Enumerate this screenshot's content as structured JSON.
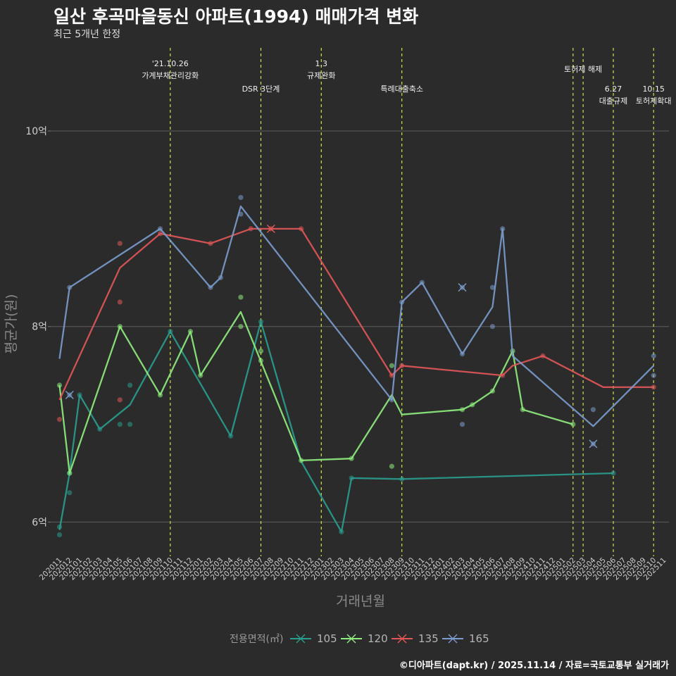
{
  "header": {
    "title": "일산 후곡마을동신 아파트(1994) 매매가격 변화",
    "subtitle": "최근 5개년 한정"
  },
  "caption": "©디아파트(dapt.kr) / 2025.11.14 / 자료=국토교통부 실거래가",
  "chart_data": {
    "type": "line",
    "title": "일산 후곡마을동신 아파트(1994) 매매가격 변화",
    "subtitle": "최근 5개년 한정",
    "xlabel": "거래년월",
    "ylabel": "평균가(원)",
    "ylim": [
      5.65,
      10.85
    ],
    "yticks": [
      {
        "value": 6,
        "label": "6억"
      },
      {
        "value": 8,
        "label": "8억"
      },
      {
        "value": 10,
        "label": "10억"
      }
    ],
    "categories": [
      "202011",
      "202012",
      "202101",
      "202102",
      "202103",
      "202104",
      "202105",
      "202106",
      "202107",
      "202108",
      "202109",
      "202110",
      "202111",
      "202112",
      "202201",
      "202202",
      "202203",
      "202204",
      "202205",
      "202206",
      "202207",
      "202208",
      "202209",
      "202210",
      "202211",
      "202212",
      "202301",
      "202302",
      "202303",
      "202304",
      "202305",
      "202306",
      "202307",
      "202308",
      "202309",
      "202310",
      "202311",
      "202312",
      "202401",
      "202402",
      "202403",
      "202404",
      "202405",
      "202406",
      "202407",
      "202408",
      "202409",
      "202410",
      "202411",
      "202412",
      "202501",
      "202502",
      "202503",
      "202504",
      "202505",
      "202506",
      "202507",
      "202508",
      "202509",
      "202510",
      "202511"
    ],
    "legend_title": "전용면적(㎡)",
    "series": [
      {
        "name": "105",
        "color": "#2a9d8f",
        "line": [
          [
            0,
            5.92
          ],
          [
            1,
            6.5
          ],
          [
            2,
            7.3
          ],
          [
            4,
            6.95
          ],
          [
            7,
            7.2
          ],
          [
            11,
            7.95
          ],
          [
            17,
            6.88
          ],
          [
            20,
            8.05
          ],
          [
            24,
            6.62
          ],
          [
            28,
            5.9
          ],
          [
            29,
            6.45
          ],
          [
            34,
            6.44
          ],
          [
            55,
            6.5
          ]
        ],
        "points": [
          [
            0,
            5.87
          ],
          [
            0,
            5.95
          ],
          [
            1,
            6.3
          ],
          [
            1,
            6.5
          ],
          [
            2,
            7.3
          ],
          [
            4,
            6.95
          ],
          [
            6,
            7.0
          ],
          [
            7,
            7.0
          ],
          [
            7,
            7.4
          ],
          [
            11,
            7.95
          ],
          [
            17,
            6.88
          ],
          [
            20,
            8.05
          ],
          [
            28,
            5.9
          ],
          [
            29,
            6.45
          ],
          [
            34,
            6.44
          ],
          [
            55,
            6.5
          ]
        ],
        "crosses": []
      },
      {
        "name": "120",
        "color": "#90ee7e",
        "line": [
          [
            0,
            7.4
          ],
          [
            1,
            6.5
          ],
          [
            6,
            8.0
          ],
          [
            10,
            7.3
          ],
          [
            13,
            7.95
          ],
          [
            14,
            7.5
          ],
          [
            18,
            8.15
          ],
          [
            24,
            6.63
          ],
          [
            29,
            6.65
          ],
          [
            33,
            7.3
          ],
          [
            34,
            7.1
          ],
          [
            40,
            7.15
          ],
          [
            41,
            7.2
          ],
          [
            43,
            7.34
          ],
          [
            45,
            7.75
          ],
          [
            46,
            7.15
          ],
          [
            51,
            7.0
          ]
        ],
        "points": [
          [
            0,
            7.4
          ],
          [
            1,
            6.5
          ],
          [
            6,
            8.0
          ],
          [
            10,
            7.3
          ],
          [
            13,
            7.95
          ],
          [
            14,
            7.5
          ],
          [
            18,
            8.0
          ],
          [
            18,
            8.3
          ],
          [
            20,
            7.65
          ],
          [
            20,
            7.75
          ],
          [
            24,
            6.63
          ],
          [
            29,
            6.65
          ],
          [
            33,
            6.57
          ],
          [
            33,
            7.6
          ],
          [
            40,
            7.15
          ],
          [
            41,
            7.2
          ],
          [
            43,
            7.34
          ],
          [
            45,
            7.75
          ],
          [
            46,
            7.15
          ],
          [
            51,
            7.0
          ]
        ],
        "crosses": []
      },
      {
        "name": "135",
        "color": "#e15759",
        "line": [
          [
            0,
            7.25
          ],
          [
            6,
            8.6
          ],
          [
            10,
            8.95
          ],
          [
            15,
            8.85
          ],
          [
            19,
            9.0
          ],
          [
            21,
            9.0
          ],
          [
            24,
            9.0
          ],
          [
            33,
            7.5
          ],
          [
            34,
            7.6
          ],
          [
            44,
            7.5
          ],
          [
            45,
            7.6
          ],
          [
            48,
            7.7
          ],
          [
            54,
            7.38
          ],
          [
            59,
            7.38
          ]
        ],
        "points": [
          [
            0,
            7.05
          ],
          [
            6,
            8.25
          ],
          [
            6,
            8.85
          ],
          [
            6,
            7.25
          ],
          [
            10,
            8.95
          ],
          [
            15,
            8.85
          ],
          [
            19,
            9.0
          ],
          [
            24,
            9.0
          ],
          [
            33,
            7.5
          ],
          [
            34,
            7.6
          ],
          [
            44,
            7.5
          ],
          [
            48,
            7.7
          ],
          [
            59,
            7.38
          ]
        ],
        "crosses": [
          [
            21,
            9.0
          ]
        ]
      },
      {
        "name": "165",
        "color": "#7b9ccc",
        "line": [
          [
            0,
            7.67
          ],
          [
            1,
            8.4
          ],
          [
            10,
            9.0
          ],
          [
            15,
            8.4
          ],
          [
            16,
            8.5
          ],
          [
            18,
            9.23
          ],
          [
            33,
            7.25
          ],
          [
            34,
            8.25
          ],
          [
            36,
            8.45
          ],
          [
            40,
            7.72
          ],
          [
            43,
            8.2
          ],
          [
            44,
            9.0
          ],
          [
            45,
            7.7
          ],
          [
            53,
            6.98
          ],
          [
            59,
            7.6
          ]
        ],
        "points": [
          [
            1,
            8.4
          ],
          [
            10,
            9.0
          ],
          [
            15,
            8.4
          ],
          [
            16,
            8.5
          ],
          [
            18,
            9.15
          ],
          [
            18,
            9.32
          ],
          [
            33,
            7.25
          ],
          [
            34,
            8.25
          ],
          [
            36,
            8.45
          ],
          [
            40,
            7.0
          ],
          [
            40,
            7.72
          ],
          [
            43,
            8.0
          ],
          [
            43,
            8.4
          ],
          [
            44,
            9.0
          ],
          [
            53,
            7.15
          ],
          [
            59,
            7.5
          ],
          [
            59,
            7.7
          ]
        ],
        "crosses": [
          [
            1,
            7.3
          ],
          [
            40,
            8.4
          ],
          [
            53,
            6.8
          ]
        ]
      }
    ],
    "annotations": [
      {
        "index": 11,
        "lines": [
          "'21.10.26",
          "가계부채관리강화"
        ],
        "row": 0
      },
      {
        "index": 20,
        "lines": [
          "DSR 3단계"
        ],
        "row": 2
      },
      {
        "index": 26,
        "lines": [
          "1.3",
          "규제완화"
        ],
        "row": 0
      },
      {
        "index": 34,
        "lines": [
          "특례대출축소"
        ],
        "row": 2
      },
      {
        "index": 51,
        "lines": [],
        "row": 0
      },
      {
        "index": 52,
        "lines": [
          "토허제 해제"
        ],
        "row": 1
      },
      {
        "index": 55,
        "lines": [
          "6.27",
          "대출규제"
        ],
        "row": 2
      },
      {
        "index": 59,
        "lines": [
          "10.15",
          "토허제확대"
        ],
        "row": 2
      }
    ]
  }
}
